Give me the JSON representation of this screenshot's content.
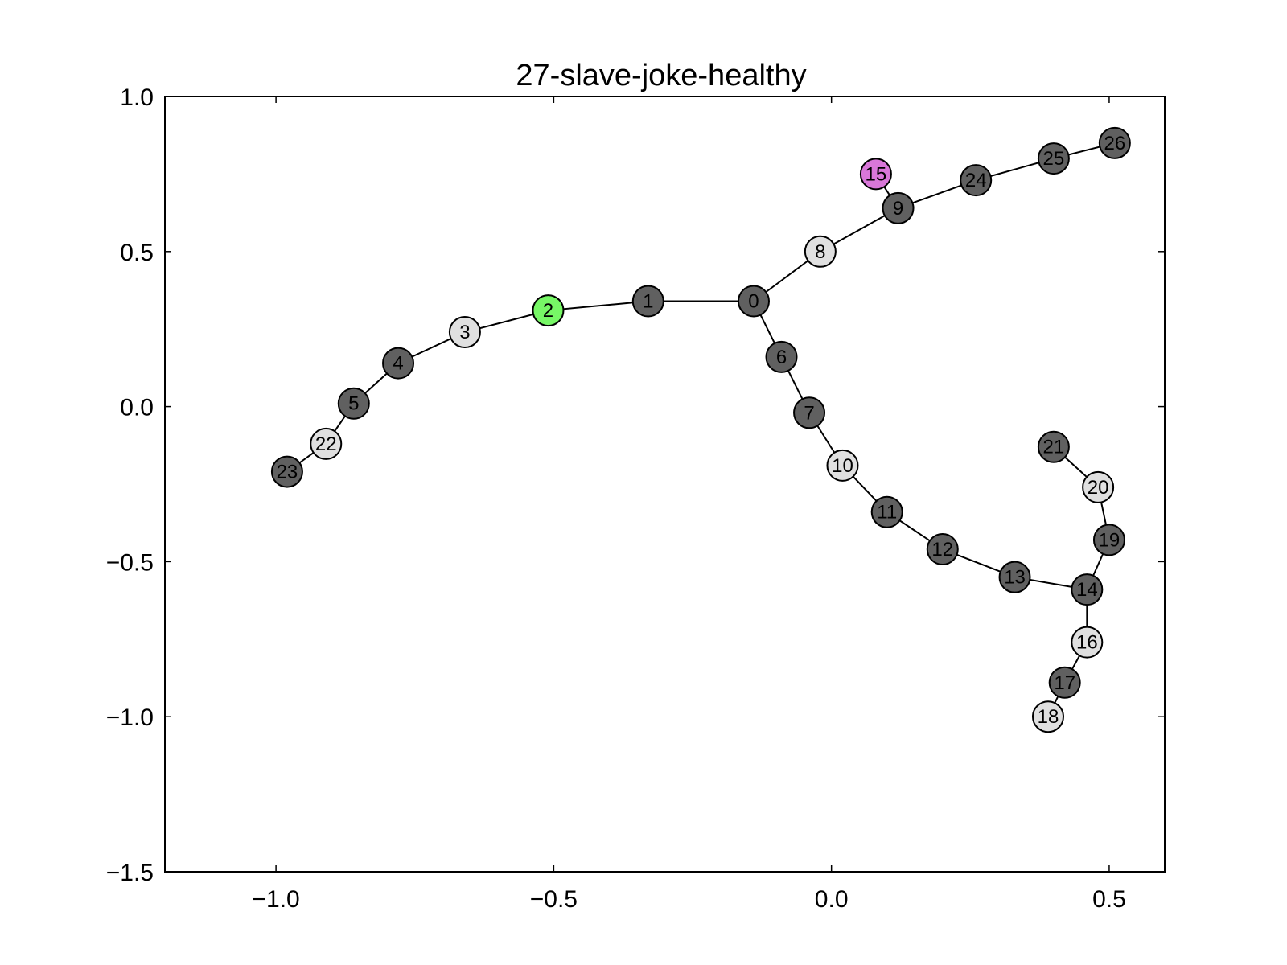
{
  "chart_data": {
    "type": "scatter",
    "title": "27-slave-joke-healthy",
    "xlabel": "",
    "ylabel": "",
    "xlim": [
      -1.2,
      0.6
    ],
    "ylim": [
      -1.5,
      1.0
    ],
    "xticks": [
      -1.0,
      -0.5,
      0.0,
      0.5
    ],
    "xtick_labels": [
      "−1.0",
      "−0.5",
      "0.0",
      "0.5"
    ],
    "yticks": [
      1.0,
      0.5,
      0.0,
      -0.5,
      -1.0,
      -1.5
    ],
    "ytick_labels": [
      "1.0",
      "0.5",
      "0.0",
      "−0.5",
      "−1.0",
      "−1.5"
    ],
    "grid": false,
    "node_colors": {
      "dark": "#606060",
      "light": "#e0e0e0",
      "green": "#77f766",
      "pink": "#d977d9"
    },
    "nodes": [
      {
        "id": "0",
        "x": -0.14,
        "y": 0.34,
        "color": "dark"
      },
      {
        "id": "1",
        "x": -0.33,
        "y": 0.34,
        "color": "dark"
      },
      {
        "id": "2",
        "x": -0.51,
        "y": 0.31,
        "color": "green"
      },
      {
        "id": "3",
        "x": -0.66,
        "y": 0.24,
        "color": "light"
      },
      {
        "id": "4",
        "x": -0.78,
        "y": 0.14,
        "color": "dark"
      },
      {
        "id": "5",
        "x": -0.86,
        "y": 0.01,
        "color": "dark"
      },
      {
        "id": "6",
        "x": -0.09,
        "y": 0.16,
        "color": "dark"
      },
      {
        "id": "7",
        "x": -0.04,
        "y": -0.02,
        "color": "dark"
      },
      {
        "id": "8",
        "x": -0.02,
        "y": 0.5,
        "color": "light"
      },
      {
        "id": "9",
        "x": 0.12,
        "y": 0.64,
        "color": "dark"
      },
      {
        "id": "10",
        "x": 0.02,
        "y": -0.19,
        "color": "light"
      },
      {
        "id": "11",
        "x": 0.1,
        "y": -0.34,
        "color": "dark"
      },
      {
        "id": "12",
        "x": 0.2,
        "y": -0.46,
        "color": "dark"
      },
      {
        "id": "13",
        "x": 0.33,
        "y": -0.55,
        "color": "dark"
      },
      {
        "id": "14",
        "x": 0.46,
        "y": -0.59,
        "color": "dark"
      },
      {
        "id": "15",
        "x": 0.08,
        "y": 0.75,
        "color": "pink"
      },
      {
        "id": "16",
        "x": 0.46,
        "y": -0.76,
        "color": "light"
      },
      {
        "id": "17",
        "x": 0.42,
        "y": -0.89,
        "color": "dark"
      },
      {
        "id": "18",
        "x": 0.39,
        "y": -1.0,
        "color": "light"
      },
      {
        "id": "19",
        "x": 0.5,
        "y": -0.43,
        "color": "dark"
      },
      {
        "id": "20",
        "x": 0.48,
        "y": -0.26,
        "color": "light"
      },
      {
        "id": "21",
        "x": 0.4,
        "y": -0.13,
        "color": "dark"
      },
      {
        "id": "22",
        "x": -0.91,
        "y": -0.12,
        "color": "light"
      },
      {
        "id": "23",
        "x": -0.98,
        "y": -0.21,
        "color": "dark"
      },
      {
        "id": "24",
        "x": 0.26,
        "y": 0.73,
        "color": "dark"
      },
      {
        "id": "25",
        "x": 0.4,
        "y": 0.8,
        "color": "dark"
      },
      {
        "id": "26",
        "x": 0.51,
        "y": 0.85,
        "color": "dark"
      }
    ],
    "edges": [
      [
        "0",
        "1"
      ],
      [
        "1",
        "2"
      ],
      [
        "2",
        "3"
      ],
      [
        "3",
        "4"
      ],
      [
        "4",
        "5"
      ],
      [
        "5",
        "22"
      ],
      [
        "22",
        "23"
      ],
      [
        "0",
        "6"
      ],
      [
        "6",
        "7"
      ],
      [
        "7",
        "10"
      ],
      [
        "10",
        "11"
      ],
      [
        "11",
        "12"
      ],
      [
        "12",
        "13"
      ],
      [
        "13",
        "14"
      ],
      [
        "14",
        "16"
      ],
      [
        "16",
        "17"
      ],
      [
        "17",
        "18"
      ],
      [
        "14",
        "19"
      ],
      [
        "19",
        "20"
      ],
      [
        "20",
        "21"
      ],
      [
        "0",
        "8"
      ],
      [
        "8",
        "9"
      ],
      [
        "9",
        "15"
      ],
      [
        "9",
        "24"
      ],
      [
        "24",
        "25"
      ],
      [
        "25",
        "26"
      ]
    ]
  }
}
